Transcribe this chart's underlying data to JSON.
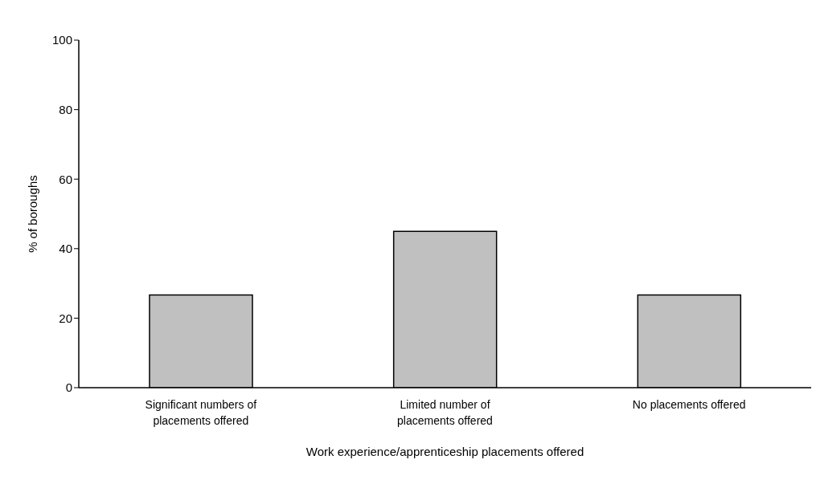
{
  "chart_data": {
    "type": "bar",
    "xlabel": "Work experience/apprenticeship placements offered",
    "ylabel": "% of boroughs",
    "categories": [
      "Significant numbers of placements offered",
      "Limited number of placements offered",
      "No placements offered"
    ],
    "values": [
      26.7,
      45,
      26.7
    ],
    "color": "#c0c0c0",
    "ylim": [
      0,
      100
    ],
    "yticks": [
      0,
      20,
      40,
      60,
      80,
      100
    ]
  }
}
